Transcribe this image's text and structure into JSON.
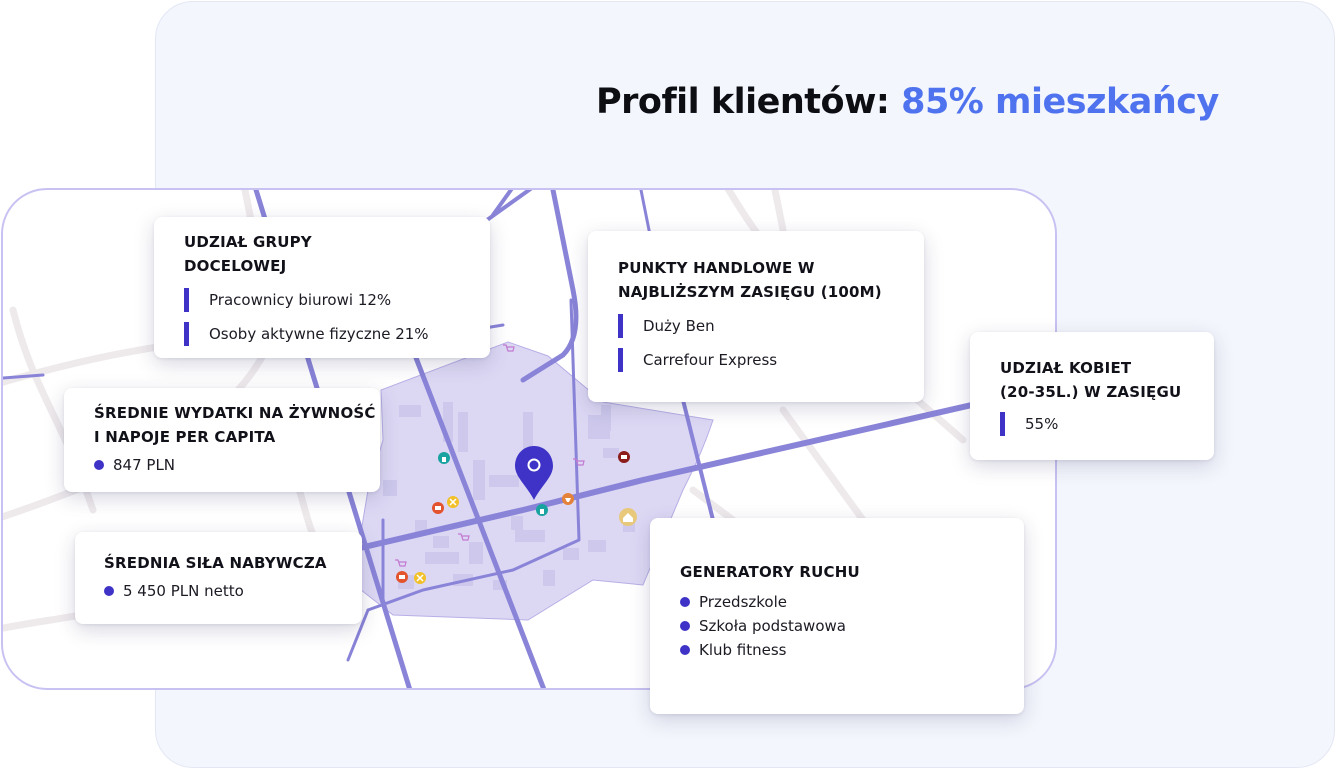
{
  "headline": {
    "prefix": "Profil klientów:",
    "accent": "85% mieszkańcy"
  },
  "colors": {
    "accent_blue": "#4f73ee",
    "bullet_indigo": "#3e33c6",
    "area_fill": "#dcd8f4",
    "street": "#8a84d8",
    "pin": "#3e33c6"
  },
  "map": {
    "pin_icon": "location-pin-icon",
    "poi_icons": [
      "tree-icon",
      "shop-icon",
      "restaurant-icon",
      "cafe-icon",
      "home-icon",
      "camera-icon",
      "cart-icon"
    ]
  },
  "cards": {
    "target_group": {
      "title_line1": "UDZIAŁ GRUPY",
      "title_line2": "DOCELOWEJ",
      "items": [
        "Pracownicy biurowi 12%",
        "Osoby aktywne fizyczne 21%"
      ]
    },
    "spending": {
      "title_line1": "ŚREDNIE WYDATKI NA ŻYWNOŚĆ",
      "title_line2": "I NAPOJE PER CAPITA",
      "value": "847 PLN"
    },
    "purchasing_power": {
      "title": "ŚREDNIA SIŁA NABYWCZA",
      "value": "5 450 PLN netto"
    },
    "shops": {
      "title_line1": "PUNKTY HANDLOWE W",
      "title_line2": "NAJBLIŻSZYM ZASIĘGU (100M)",
      "items": [
        "Duży Ben",
        "Carrefour Express"
      ]
    },
    "women": {
      "title_line1": "UDZIAŁ KOBIET",
      "title_line2": "(20-35L.) W ZASIĘGU",
      "value": "55%"
    },
    "traffic": {
      "title": "GENERATORY RUCHU",
      "items": [
        "Przedszkole",
        "Szkoła podstawowa",
        "Klub fitness"
      ]
    }
  }
}
